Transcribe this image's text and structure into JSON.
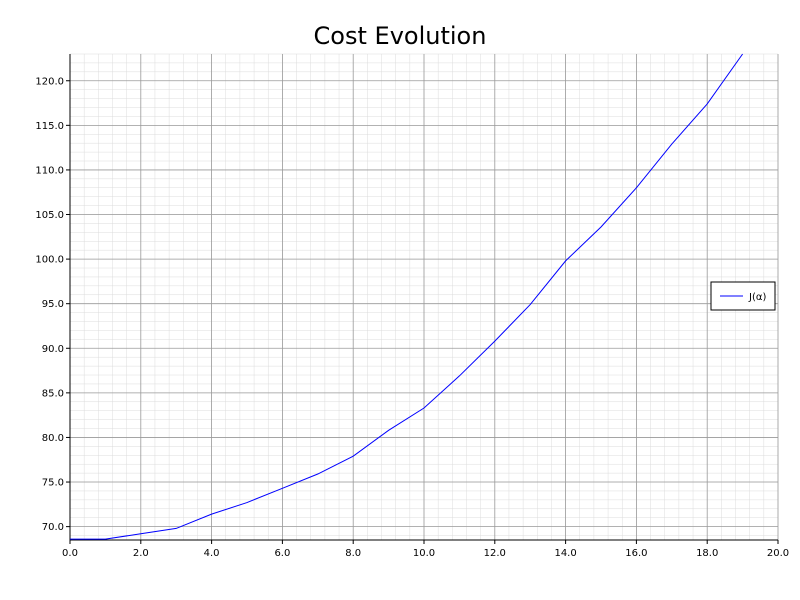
{
  "chart_data": {
    "type": "line",
    "title": "Cost Evolution",
    "xlabel": "",
    "ylabel": "",
    "xlim": [
      0,
      20
    ],
    "ylim": [
      68.5,
      123
    ],
    "x_ticks": [
      0,
      2,
      4,
      6,
      8,
      10,
      12,
      14,
      16,
      18,
      20
    ],
    "x_tick_labels": [
      "0.0",
      "2.0",
      "4.0",
      "6.0",
      "8.0",
      "10.0",
      "12.0",
      "14.0",
      "16.0",
      "18.0",
      "20.0"
    ],
    "y_ticks": [
      70,
      75,
      80,
      85,
      90,
      95,
      100,
      105,
      110,
      115,
      120
    ],
    "y_tick_labels": [
      "70.0",
      "75.0",
      "80.0",
      "85.0",
      "90.0",
      "95.0",
      "100.0",
      "105.0",
      "110.0",
      "115.0",
      "120.0"
    ],
    "grid": true,
    "legend": {
      "position": "right"
    },
    "colors": {
      "series": "#0000ff",
      "grid_major": "#9a9a9a",
      "grid_minor": "#dcdcdc"
    },
    "series": [
      {
        "name": "J(α)",
        "x": [
          0,
          1,
          2,
          3,
          4,
          5,
          6,
          7,
          8,
          9,
          10,
          11,
          12,
          13,
          14,
          15,
          16,
          17,
          18,
          19
        ],
        "y": [
          68.6,
          68.6,
          69.2,
          69.8,
          71.4,
          72.7,
          74.3,
          75.9,
          77.9,
          80.8,
          83.3,
          86.9,
          90.8,
          94.9,
          99.8,
          103.6,
          108.0,
          112.9,
          117.4,
          123.0
        ]
      }
    ]
  }
}
